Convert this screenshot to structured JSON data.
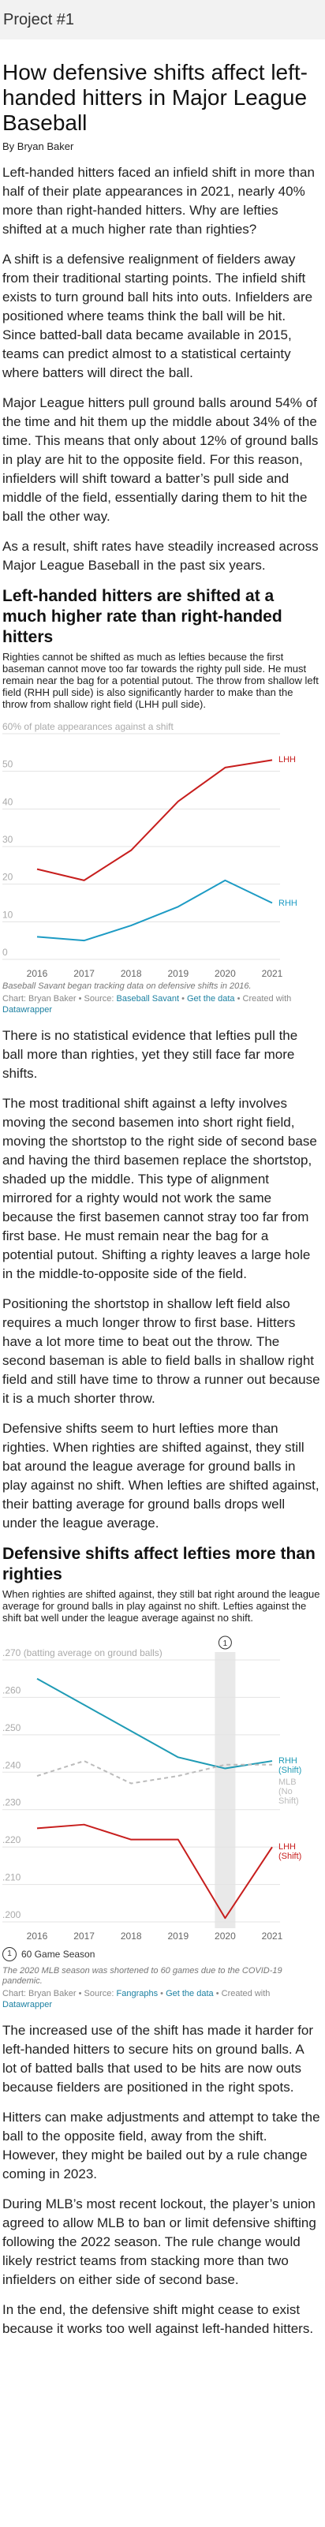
{
  "header": {
    "project": "Project #1"
  },
  "article": {
    "title": "How defensive shifts affect left-handed hitters in Major League Baseball",
    "byline": "By Bryan Baker",
    "paragraphs_1": [
      "Left-handed hitters faced an infield shift in more than half of their plate appearances in 2021, nearly 40% more than right-handed hitters. Why are lefties shifted at a much higher rate than righties?",
      "A shift is a defensive realignment of fielders away from their traditional starting points. The infield shift exists to turn ground ball hits into outs. Infielders are positioned where teams think the ball will be hit. Since batted-ball data became available in 2015, teams can predict almost to a statistical certainty where batters will direct the ball.",
      "Major League hitters pull ground balls around 54% of the time and hit them up the middle about 34% of the time. This means that only about 12% of ground balls in play are hit to the opposite field. For this reason, infielders will shift toward a batter’s pull side and middle of the field, essentially daring them to hit the ball the other way.",
      "As a result, shift rates have steadily increased across Major League Baseball in the past six years."
    ],
    "paragraphs_2": [
      "There is no statistical evidence that lefties pull the ball more than righties, yet they still face far more shifts.",
      "The most traditional shift against a lefty involves moving the second basemen into short right field, moving the shortstop to the right side of second base and having the third basemen replace the shortstop, shaded up the middle. This type of alignment mirrored for a righty would not work the same because the first basemen cannot stray too far from first base. He must remain near the bag for a potential putout. Shifting a righty leaves a large hole in the middle-to-opposite side of the field.",
      "Positioning the shortstop in shallow left field also requires a much longer throw to first base. Hitters have a lot more time to beat out the throw. The second baseman is able to field balls in shallow right field and still have time to throw a runner out because it is a much shorter throw.",
      "Defensive shifts seem to hurt lefties more than righties. When righties are shifted against, they still bat around the league average for ground balls in play against no shift. When lefties are shifted against, their batting average for ground balls drops well under the league average."
    ],
    "paragraphs_3": [
      "The increased use of the shift has made it harder for left-handed hitters to secure hits on ground balls. A lot of batted balls that used to be hits are now outs because fielders are positioned in the right spots.",
      "Hitters can make adjustments and attempt to take the ball to the opposite field, away from the shift. However, they might be bailed out by a rule change coming in 2023.",
      "During MLB’s most recent lockout, the player’s union agreed to allow MLB to ban or limit defensive shifting following the 2022 season. The rule change would likely restrict teams from stacking more than two infielders on either side of second base.",
      "In the end, the defensive shift might cease to exist because it works too well against left-handed hitters."
    ]
  },
  "chart_data": [
    {
      "type": "line",
      "title": "Left-handed hitters are shifted at a much higher rate than right-handed hitters",
      "subtitle": "Righties cannot be shifted as much as lefties because the first baseman cannot move too far towards the righty pull side. He must remain near the bag for a potential putout. The throw from shallow left field (RHH pull side) is also significantly harder to make than the throw from shallow right field (LHH pull side).",
      "x": [
        2016,
        2017,
        2018,
        2019,
        2020,
        2021
      ],
      "xlim": [
        2016,
        2021
      ],
      "ylim": [
        0,
        60
      ],
      "yticks": [
        0,
        10,
        20,
        30,
        40,
        50,
        {
          "value": 60,
          "label": "60% of plate appearances against a shift"
        }
      ],
      "grid": true,
      "series": [
        {
          "name": "LHH",
          "color": "#c71e1d",
          "values": [
            24,
            21,
            29,
            42,
            51,
            53
          ]
        },
        {
          "name": "RHH",
          "color": "#1d9bc4",
          "values": [
            6,
            5,
            9,
            14,
            21,
            15
          ]
        }
      ],
      "notes": "Baseball Savant began tracking data on defensive shifts in 2016.",
      "source": {
        "credit": "Chart: Bryan Baker",
        "separator": "•",
        "source_prefix": "Source:",
        "source": "Baseball Savant",
        "data_link": "Get the data",
        "created_prefix": "Created with",
        "tool": "Datawrapper"
      }
    },
    {
      "type": "line",
      "title": "Defensive shifts affect lefties more than righties",
      "subtitle": "When righties are shifted against, they still bat right around the league average for ground balls in play against no shift. Lefties against the shift bat well under the league average against no shift.",
      "x": [
        2016,
        2017,
        2018,
        2019,
        2020,
        2021
      ],
      "xlim": [
        2016,
        2021
      ],
      "ylim": [
        0.2,
        0.27
      ],
      "yticks": [
        {
          "value": 0.2,
          "label": ".200"
        },
        {
          "value": 0.21,
          "label": ".210"
        },
        {
          "value": 0.22,
          "label": ".220"
        },
        {
          "value": 0.23,
          "label": ".230"
        },
        {
          "value": 0.24,
          "label": ".240"
        },
        {
          "value": 0.25,
          "label": ".250"
        },
        {
          "value": 0.26,
          "label": ".260"
        },
        {
          "value": 0.27,
          "label": ".270 (batting average on ground balls)"
        }
      ],
      "grid": true,
      "series": [
        {
          "name": "RHH (Shift)",
          "color": "#1f9bb5",
          "values": [
            0.265,
            0.258,
            0.251,
            0.244,
            0.241,
            0.243
          ]
        },
        {
          "name": "MLB (No Shift)",
          "color": "#bbbbbb",
          "dashed": true,
          "values": [
            0.239,
            0.243,
            0.237,
            0.239,
            0.242,
            0.242
          ]
        },
        {
          "name": "LHH (Shift)",
          "color": "#c71e1d",
          "values": [
            0.225,
            0.226,
            0.222,
            0.222,
            0.201,
            0.22
          ]
        }
      ],
      "annotations": [
        {
          "x": 2020,
          "marker": "1",
          "label": "60 Game Season"
        }
      ],
      "notes": "The 2020 MLB season was shortened to 60 games due to the COVID-19 pandemic.",
      "source": {
        "credit": "Chart: Bryan Baker",
        "separator": "•",
        "source_prefix": "Source:",
        "source": "Fangraphs",
        "data_link": "Get the data",
        "created_prefix": "Created with",
        "tool": "Datawrapper"
      }
    }
  ]
}
